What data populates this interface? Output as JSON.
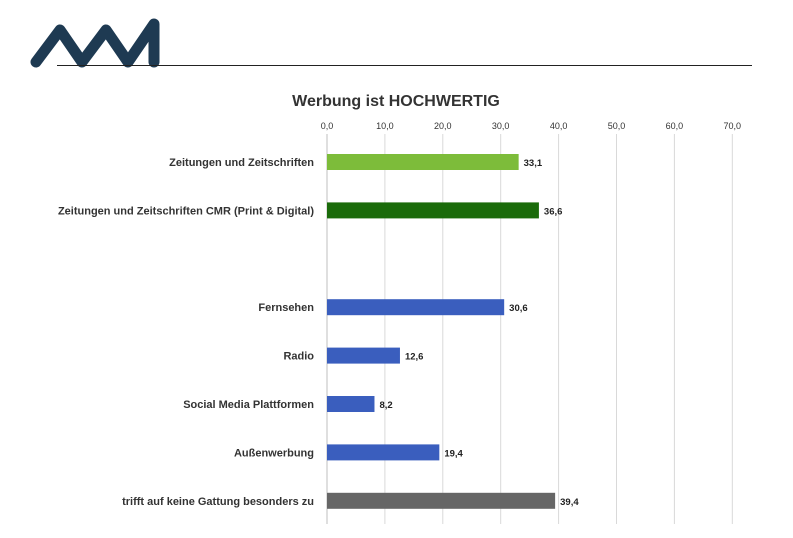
{
  "colors": {
    "logo": "#1e3a52",
    "rule": "#222222",
    "grid": "#d9d9d9"
  },
  "logo": {
    "icon": "ma-logo"
  },
  "chart_data": {
    "type": "bar",
    "orientation": "horizontal",
    "title": "Werbung ist HOCHWERTIG",
    "xlim": [
      0,
      70
    ],
    "xticks": [
      "0,0",
      "10,0",
      "20,0",
      "30,0",
      "40,0",
      "50,0",
      "60,0",
      "70,0"
    ],
    "xaxis_position": "top",
    "grid": true,
    "categories": [
      "Zeitungen und Zeitschriften",
      "Zeitungen und Zeitschriften CMR (Print & Digital)",
      "",
      "Fernsehen",
      "Radio",
      "Social Media Plattformen",
      "Außenwerbung",
      "trifft auf keine Gattung besonders zu"
    ],
    "values": [
      33.1,
      36.6,
      null,
      30.6,
      12.6,
      8.2,
      19.4,
      39.4
    ],
    "value_labels": [
      "33,1",
      "36,6",
      "",
      "30,6",
      "12,6",
      "8,2",
      "19,4",
      "39,4"
    ],
    "bar_colors": [
      "#7dbc3a",
      "#1a6b0a",
      "",
      "#3a5ebe",
      "#3a5ebe",
      "#3a5ebe",
      "#3a5ebe",
      "#666666"
    ]
  }
}
